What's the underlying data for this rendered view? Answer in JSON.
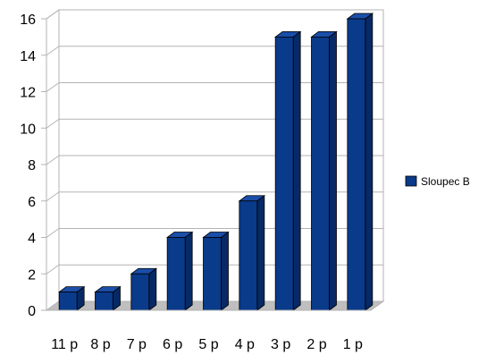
{
  "chart_data": {
    "type": "bar",
    "categories": [
      "11 p",
      "8 p",
      "7 p",
      "6 p",
      "5 p",
      "4 p",
      "3 p",
      "2 p",
      "1 p"
    ],
    "series": [
      {
        "name": "Sloupec B",
        "values": [
          1,
          1,
          2,
          4,
          4,
          6,
          15,
          15,
          16
        ],
        "color": "#0a3a8a"
      }
    ],
    "y_ticks": [
      "0",
      "2",
      "4",
      "6",
      "8",
      "10",
      "12",
      "14",
      "16"
    ],
    "ylim": [
      0,
      16
    ],
    "grid": true,
    "legend": "right",
    "style": "3d"
  }
}
